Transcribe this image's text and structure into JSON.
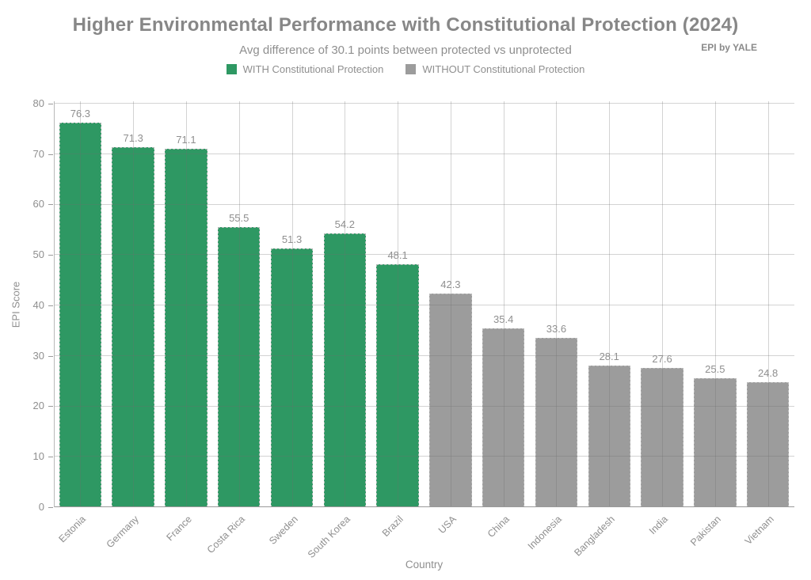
{
  "header": {
    "title": "Higher Environmental Performance with Constitutional Protection (2024)",
    "subtitle": "Avg difference of 30.1 points between protected vs unprotected",
    "source_note": "EPI by YALE"
  },
  "legend": [
    {
      "label": "WITH Constitutional Protection",
      "color": "#2e9863"
    },
    {
      "label": "WITHOUT Constitutional Protection",
      "color": "#9c9c9c"
    }
  ],
  "axes": {
    "x_title": "Country",
    "y_title": "EPI Score"
  },
  "chart_data": {
    "type": "bar",
    "title": "Higher Environmental Performance with Constitutional Protection (2024)",
    "subtitle": "Avg difference of 30.1 points between protected vs unprotected",
    "xlabel": "Country",
    "ylabel": "EPI Score",
    "ylim": [
      0,
      80
    ],
    "yticks": [
      0,
      10,
      20,
      30,
      40,
      50,
      60,
      70,
      80
    ],
    "grid": true,
    "legend_position": "top-center",
    "categories": [
      "Estonia",
      "Germany",
      "France",
      "Costa Rica",
      "Sweden",
      "South Korea",
      "Brazil",
      "USA",
      "China",
      "Indonesia",
      "Bangladesh",
      "India",
      "Pakistan",
      "Vietnam"
    ],
    "values": [
      76.3,
      71.3,
      71.1,
      55.5,
      51.3,
      54.2,
      48.1,
      42.3,
      35.4,
      33.6,
      28.1,
      27.6,
      25.5,
      24.8
    ],
    "groups": [
      "with",
      "with",
      "with",
      "with",
      "with",
      "with",
      "with",
      "without",
      "without",
      "without",
      "without",
      "without",
      "without",
      "without"
    ],
    "series": [
      {
        "name": "WITH Constitutional Protection",
        "color": "#2e9863",
        "values": [
          76.3,
          71.3,
          71.1,
          55.5,
          51.3,
          54.2,
          48.1,
          null,
          null,
          null,
          null,
          null,
          null,
          null
        ]
      },
      {
        "name": "WITHOUT Constitutional Protection",
        "color": "#9c9c9c",
        "values": [
          null,
          null,
          null,
          null,
          null,
          null,
          null,
          42.3,
          35.4,
          33.6,
          28.1,
          27.6,
          25.5,
          24.8
        ]
      }
    ]
  }
}
